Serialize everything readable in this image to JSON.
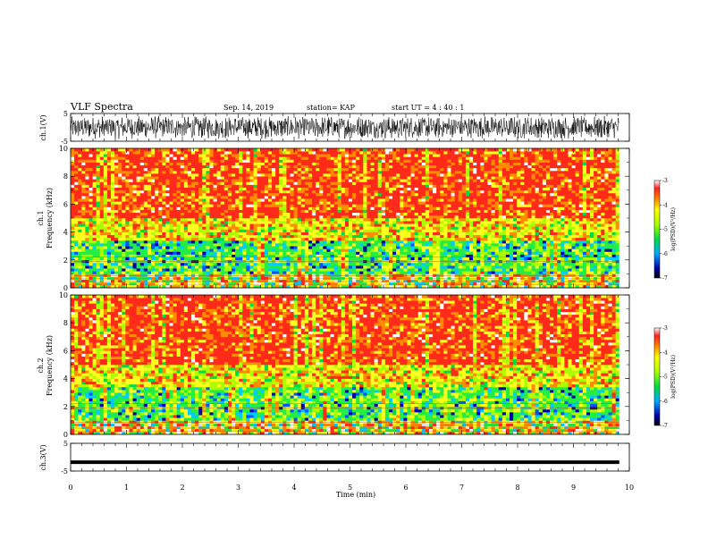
{
  "header": {
    "title": "VLF Spectra",
    "date": "Sep. 14, 2019",
    "station": "station= KAP",
    "start": "start  UT  =   4 : 40 : 1"
  },
  "chart_data": [
    {
      "type": "line",
      "name": "ch1-waveform",
      "ylabel": "ch.1(V)",
      "ylim": [
        -5,
        5
      ],
      "y_ticks": [
        "5",
        "-5"
      ],
      "description_kind": "noisy waveform around 0 V, amplitude about ±5 V",
      "x_range": [
        0,
        9.82
      ]
    },
    {
      "type": "heatmap",
      "name": "ch1-spectrogram",
      "ylabel": "ch.1",
      "ylabel2": "Frequency  (kHz)",
      "ylim": [
        0,
        10
      ],
      "y_ticks": [
        "0",
        "2",
        "4",
        "6",
        "8",
        "10"
      ],
      "x_range": [
        0,
        9.82
      ],
      "bands": [
        {
          "from": 0,
          "to": 1,
          "level": "mixed"
        },
        {
          "from": 1,
          "to": 3.5,
          "level": "green-cyan"
        },
        {
          "from": 3.5,
          "to": 5,
          "level": "yellow-green"
        },
        {
          "from": 5,
          "to": 10,
          "level": "red-yellow"
        }
      ],
      "colorbar": {
        "label": "log(PSD)(V²/Hz)",
        "ticks": [
          "-3",
          "-4",
          "-5",
          "-6",
          "-7"
        ],
        "range": [
          -7,
          -3
        ]
      }
    },
    {
      "type": "heatmap",
      "name": "ch2-spectrogram",
      "ylabel": "ch.2",
      "ylabel2": "Frequency  (kHz)",
      "ylim": [
        0,
        10
      ],
      "y_ticks": [
        "0",
        "2",
        "4",
        "6",
        "8",
        "10"
      ],
      "x_range": [
        0,
        9.82
      ],
      "bands": [
        {
          "from": 0,
          "to": 1,
          "level": "mixed"
        },
        {
          "from": 1,
          "to": 3.5,
          "level": "green-cyan"
        },
        {
          "from": 3.5,
          "to": 5,
          "level": "yellow-green"
        },
        {
          "from": 5,
          "to": 10,
          "level": "red-yellow"
        }
      ],
      "colorbar": {
        "label": "log(PSD)(V²/Hz)",
        "ticks": [
          "-3",
          "-4",
          "-5",
          "-6",
          "-7"
        ],
        "range": [
          -7,
          -3
        ]
      }
    },
    {
      "type": "line",
      "name": "ch3-waveform",
      "ylabel": "ch.3(V)",
      "ylim": [
        -5,
        5
      ],
      "y_ticks": [
        "5",
        "-5"
      ],
      "constant_value": -1.8,
      "x_range": [
        0,
        9.82
      ]
    }
  ],
  "xaxis": {
    "label": "Time  (min)",
    "ticks": [
      "0",
      "1",
      "2",
      "3",
      "4",
      "5",
      "6",
      "7",
      "8",
      "9",
      "10"
    ],
    "xlim": [
      0,
      10
    ]
  },
  "colors": {
    "waveform": "#000000",
    "high": "#ff2020",
    "mid": "#ffff00",
    "low": "#00dd44",
    "lower": "#00ccff",
    "lowest": "#0000aa"
  }
}
